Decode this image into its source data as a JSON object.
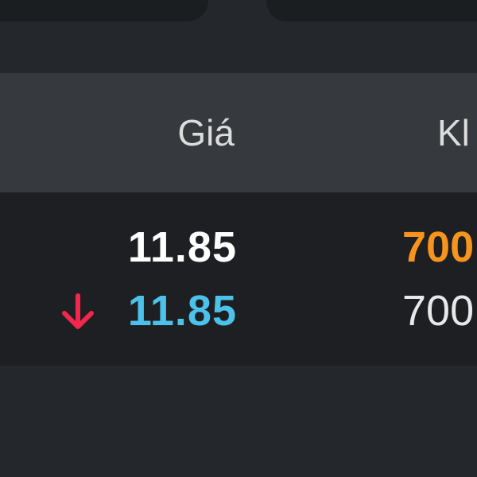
{
  "colors": {
    "background": "#24272b",
    "header": "#363a3e",
    "table": "#1d1f22",
    "white": "#ffffff",
    "blue": "#4cc2ea",
    "orange": "#f7941d",
    "down_red": "#f5264e"
  },
  "table": {
    "headers": {
      "price": "Giá",
      "volume": "Kl"
    },
    "rows": [
      {
        "price": "11.85",
        "price_color": "#ffffff",
        "volume": "700",
        "volume_color": "#f7941d",
        "indicator": ""
      },
      {
        "price": "11.85",
        "price_color": "#4cc2ea",
        "volume": "700",
        "volume_color": "#e8e8e8",
        "indicator": "arrow-down-icon"
      }
    ]
  }
}
